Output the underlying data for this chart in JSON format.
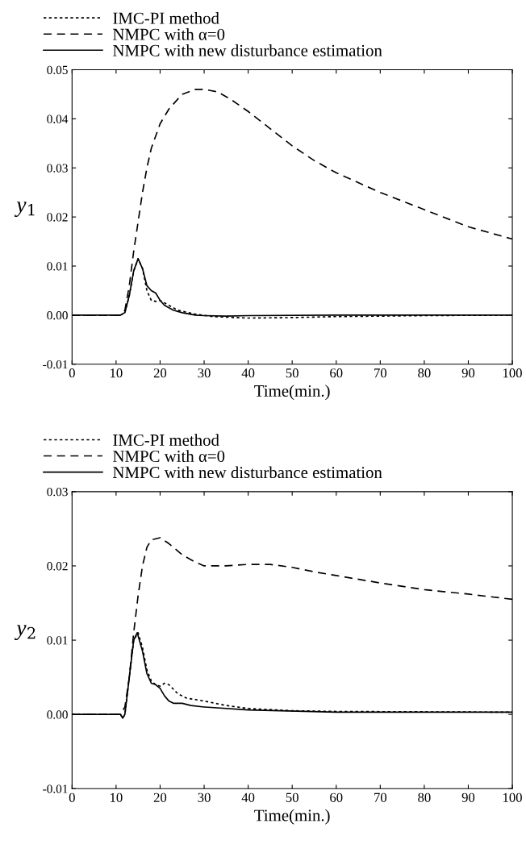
{
  "chart_data": [
    {
      "type": "line",
      "xlabel": "Time(min.)",
      "ylabel": "y$_{1}$",
      "legend": "top",
      "grid": false,
      "xlim": [
        0,
        100
      ],
      "xticks": [
        0,
        10,
        20,
        30,
        40,
        50,
        60,
        70,
        80,
        90,
        100
      ],
      "ylim": [
        -0.01,
        0.05
      ],
      "yticks": [
        {
          "value": -0.01,
          "label": "-0.01"
        },
        {
          "value": 0,
          "label": "0.00"
        },
        {
          "value": 0.01,
          "label": "0.01"
        },
        {
          "value": 0.02,
          "label": "0.02"
        },
        {
          "value": 0.03,
          "label": "0.03"
        },
        {
          "value": 0.04,
          "label": "0.04"
        },
        {
          "value": 0.05,
          "label": "0.05"
        }
      ],
      "series": [
        {
          "name": "IMC-PI method",
          "color": "#000000",
          "line_style": "dotted",
          "x": [
            0,
            11,
            12,
            13,
            14,
            15,
            16,
            17,
            18,
            19,
            20,
            22,
            24,
            28,
            32,
            40,
            50,
            60,
            80,
            100
          ],
          "values": [
            0,
            0,
            0.0005,
            0.004,
            0.009,
            0.0115,
            0.0095,
            0.005,
            0.003,
            0.0028,
            0.003,
            0.002,
            0.001,
            0.0002,
            -0.0003,
            -0.0006,
            -0.0005,
            -0.0003,
            -0.0001,
            0
          ]
        },
        {
          "name": "NMPC with α=0",
          "color": "#000000",
          "line_style": "dashed",
          "x": [
            0,
            11,
            12,
            13,
            14,
            15,
            16,
            17,
            18,
            20,
            22,
            25,
            28,
            30,
            33,
            36,
            40,
            45,
            50,
            55,
            60,
            70,
            80,
            90,
            100
          ],
          "values": [
            0,
            0,
            0.001,
            0.006,
            0.013,
            0.019,
            0.025,
            0.03,
            0.034,
            0.039,
            0.042,
            0.045,
            0.046,
            0.046,
            0.0455,
            0.044,
            0.0415,
            0.038,
            0.0345,
            0.0315,
            0.029,
            0.025,
            0.0215,
            0.018,
            0.0155
          ]
        },
        {
          "name": "NMPC with new disturbance estimation",
          "color": "#000000",
          "line_style": "solid",
          "x": [
            0,
            11,
            12,
            13,
            14,
            15,
            16,
            17,
            18,
            19,
            20,
            21,
            23,
            25,
            28,
            30,
            35,
            40,
            60,
            100
          ],
          "values": [
            0,
            0,
            0.0005,
            0.004,
            0.009,
            0.0115,
            0.0095,
            0.006,
            0.005,
            0.0045,
            0.003,
            0.002,
            0.001,
            0.0005,
            0,
            -0.0001,
            -0.0002,
            -0.0001,
            0,
            0
          ]
        }
      ]
    },
    {
      "type": "line",
      "xlabel": "Time(min.)",
      "ylabel": "y$_{2}$",
      "legend": "top",
      "grid": false,
      "xlim": [
        0,
        100
      ],
      "xticks": [
        0,
        10,
        20,
        30,
        40,
        50,
        60,
        70,
        80,
        90,
        100
      ],
      "ylim": [
        -0.01,
        0.03
      ],
      "yticks": [
        {
          "value": -0.01,
          "label": "-0.01"
        },
        {
          "value": 0,
          "label": "0.00"
        },
        {
          "value": 0.01,
          "label": "0.01"
        },
        {
          "value": 0.02,
          "label": "0.02"
        },
        {
          "value": 0.03,
          "label": "0.03"
        }
      ],
      "series": [
        {
          "name": "IMC-PI method",
          "color": "#000000",
          "line_style": "dotted",
          "x": [
            0,
            11,
            11.5,
            12,
            13,
            14,
            15,
            16,
            17,
            18,
            19,
            20,
            21,
            22,
            24,
            26,
            30,
            35,
            40,
            50,
            60,
            100
          ],
          "values": [
            0,
            0,
            -0.0005,
            0,
            0.005,
            0.01,
            0.011,
            0.009,
            0.006,
            0.0045,
            0.004,
            0.0038,
            0.0042,
            0.004,
            0.0028,
            0.0022,
            0.0018,
            0.0012,
            0.0008,
            0.0005,
            0.0004,
            0.0003
          ]
        },
        {
          "name": "NMPC with α=0",
          "color": "#000000",
          "line_style": "dashed",
          "x": [
            0,
            11,
            12,
            13,
            14,
            15,
            16,
            17,
            18,
            20,
            22,
            25,
            28,
            30,
            35,
            40,
            45,
            50,
            55,
            60,
            70,
            80,
            90,
            100
          ],
          "values": [
            0,
            0,
            0.001,
            0.005,
            0.011,
            0.016,
            0.02,
            0.0225,
            0.0235,
            0.0238,
            0.023,
            0.0215,
            0.0205,
            0.02,
            0.02,
            0.0202,
            0.0202,
            0.0198,
            0.0192,
            0.0187,
            0.0177,
            0.0168,
            0.0162,
            0.0155
          ]
        },
        {
          "name": "NMPC with new disturbance estimation",
          "color": "#000000",
          "line_style": "solid",
          "x": [
            0,
            11,
            11.5,
            12,
            13,
            14,
            14.8,
            16,
            17,
            18,
            19,
            20,
            21,
            22,
            23,
            25,
            27,
            30,
            40,
            60,
            100
          ],
          "values": [
            0,
            0,
            -0.0005,
            0,
            0.005,
            0.01,
            0.011,
            0.0085,
            0.0055,
            0.0042,
            0.004,
            0.0035,
            0.0025,
            0.0018,
            0.0015,
            0.0015,
            0.0012,
            0.001,
            0.0006,
            0.0003,
            0.0003
          ]
        }
      ]
    }
  ]
}
